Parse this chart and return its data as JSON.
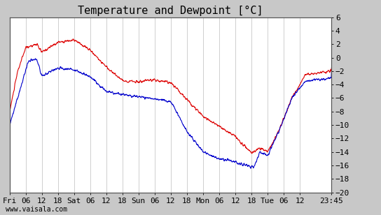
{
  "title": "Temperature and Dewpoint [°C]",
  "ylabel_right_ticks": [
    6,
    4,
    2,
    0,
    -2,
    -4,
    -6,
    -8,
    -10,
    -12,
    -14,
    -16,
    -18,
    -20
  ],
  "ylim": [
    -20,
    6
  ],
  "x_tick_labels": [
    "Fri",
    "06",
    "12",
    "18",
    "Sat",
    "06",
    "12",
    "18",
    "Sun",
    "06",
    "12",
    "18",
    "Mon",
    "06",
    "12",
    "18",
    "Tue",
    "06",
    "12",
    "23:45"
  ],
  "x_tick_positions": [
    0,
    6,
    12,
    18,
    24,
    30,
    36,
    42,
    48,
    54,
    60,
    66,
    72,
    78,
    84,
    90,
    96,
    102,
    108,
    119.75
  ],
  "total_hours": 119.75,
  "background_color": "#c8c8c8",
  "plot_bg_color": "#ffffff",
  "grid_color": "#c8c8c8",
  "temp_color": "#dd0000",
  "dewpoint_color": "#0000cc",
  "title_fontsize": 11,
  "tick_fontsize": 8,
  "watermark": "www.vaisala.com"
}
